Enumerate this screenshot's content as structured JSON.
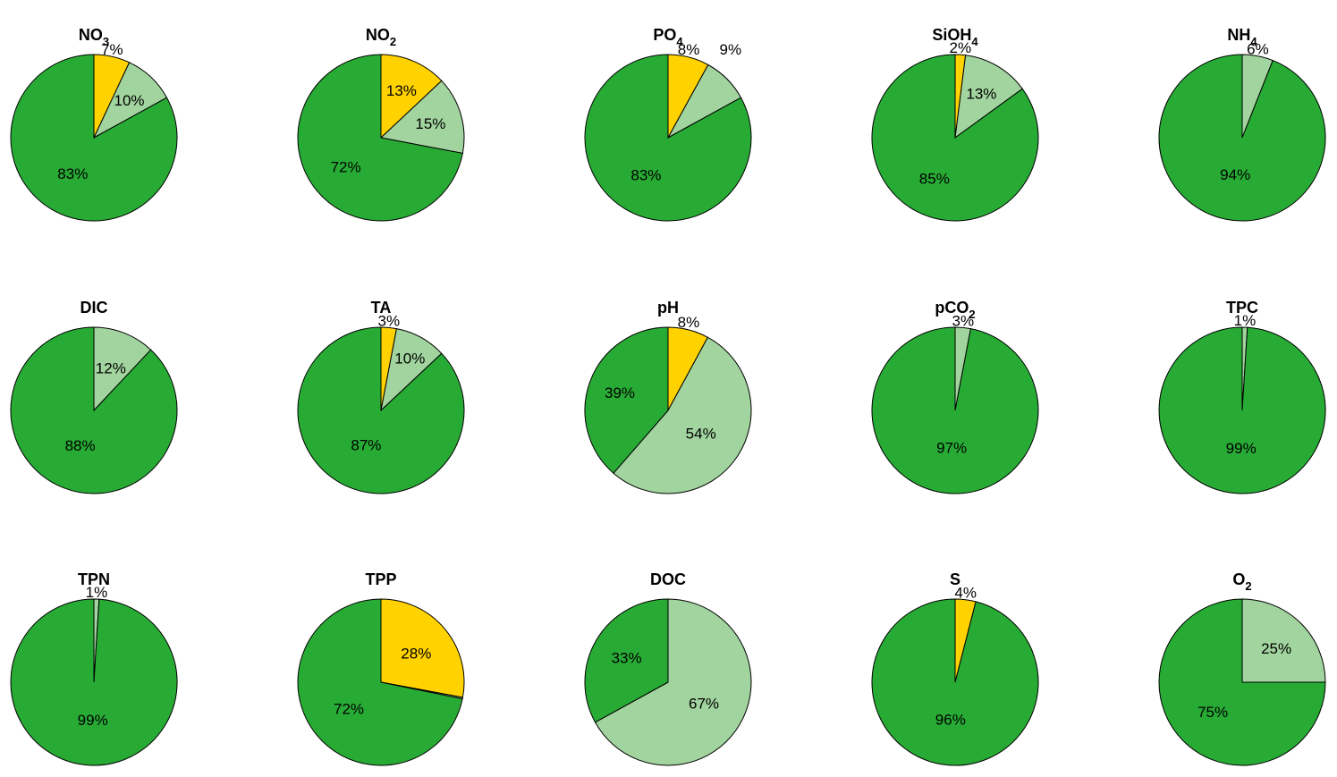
{
  "colors": {
    "yellow": "#FFD200",
    "light-green": "#A1D49E",
    "green": "#28AB35",
    "stroke": "#000000"
  },
  "chart_data": [
    {
      "type": "pie",
      "title": "NO3",
      "title_base": "NO",
      "title_sub": "3",
      "slices": [
        {
          "color": "yellow",
          "value": 7,
          "label": "7%"
        },
        {
          "color": "light-green",
          "value": 10,
          "label": "10%"
        },
        {
          "color": "green",
          "value": 83,
          "label": "83%"
        }
      ]
    },
    {
      "type": "pie",
      "title": "NO2",
      "title_base": "NO",
      "title_sub": "2",
      "slices": [
        {
          "color": "yellow",
          "value": 13,
          "label": "13%"
        },
        {
          "color": "light-green",
          "value": 15,
          "label": "15%"
        },
        {
          "color": "green",
          "value": 72,
          "label": "72%"
        }
      ]
    },
    {
      "type": "pie",
      "title": "PO4",
      "title_base": "PO",
      "title_sub": "4",
      "slices": [
        {
          "color": "yellow",
          "value": 8,
          "label": "8%"
        },
        {
          "color": "light-green",
          "value": 9,
          "label": "9%"
        },
        {
          "color": "green",
          "value": 83,
          "label": "83%"
        }
      ]
    },
    {
      "type": "pie",
      "title": "SiOH4",
      "title_base": "SiOH",
      "title_sub": "4",
      "slices": [
        {
          "color": "yellow",
          "value": 2,
          "label": "2%"
        },
        {
          "color": "light-green",
          "value": 13,
          "label": "13%"
        },
        {
          "color": "green",
          "value": 85,
          "label": "85%"
        }
      ]
    },
    {
      "type": "pie",
      "title": "NH4",
      "title_base": "NH",
      "title_sub": "4",
      "slices": [
        {
          "color": "light-green",
          "value": 6,
          "label": "6%"
        },
        {
          "color": "green",
          "value": 94,
          "label": "94%"
        }
      ]
    },
    {
      "type": "pie",
      "title": "DIC",
      "title_base": "DIC",
      "title_sub": "",
      "slices": [
        {
          "color": "light-green",
          "value": 12,
          "label": "12%"
        },
        {
          "color": "green",
          "value": 88,
          "label": "88%"
        }
      ]
    },
    {
      "type": "pie",
      "title": "TA",
      "title_base": "TA",
      "title_sub": "",
      "slices": [
        {
          "color": "yellow",
          "value": 3,
          "label": "3%"
        },
        {
          "color": "light-green",
          "value": 10,
          "label": "10%"
        },
        {
          "color": "green",
          "value": 87,
          "label": "87%"
        }
      ]
    },
    {
      "type": "pie",
      "title": "pH",
      "title_base": "pH",
      "title_sub": "",
      "slices": [
        {
          "color": "yellow",
          "value": 8,
          "label": "8%"
        },
        {
          "color": "light-green",
          "value": 54,
          "label": "54%"
        },
        {
          "color": "green",
          "value": 39,
          "label": "39%"
        }
      ]
    },
    {
      "type": "pie",
      "title": "pCO2",
      "title_base": "pCO",
      "title_sub": "2",
      "slices": [
        {
          "color": "light-green",
          "value": 3,
          "label": "3%"
        },
        {
          "color": "green",
          "value": 97,
          "label": "97%"
        }
      ]
    },
    {
      "type": "pie",
      "title": "TPC",
      "title_base": "TPC",
      "title_sub": "",
      "slices": [
        {
          "color": "light-green",
          "value": 1,
          "label": "1%"
        },
        {
          "color": "green",
          "value": 99,
          "label": "99%"
        }
      ]
    },
    {
      "type": "pie",
      "title": "TPN",
      "title_base": "TPN",
      "title_sub": "",
      "slices": [
        {
          "color": "light-green",
          "value": 1,
          "label": "1%"
        },
        {
          "color": "green",
          "value": 99,
          "label": "99%"
        }
      ]
    },
    {
      "type": "pie",
      "title": "TPP",
      "title_base": "TPP",
      "title_sub": "",
      "slices": [
        {
          "color": "yellow",
          "value": 28,
          "label": "28%"
        },
        {
          "color": "light-green",
          "value": 0.3,
          "label": ""
        },
        {
          "color": "green",
          "value": 72,
          "label": "72%"
        }
      ]
    },
    {
      "type": "pie",
      "title": "DOC",
      "title_base": "DOC",
      "title_sub": "",
      "slices": [
        {
          "color": "light-green",
          "value": 67,
          "label": "67%"
        },
        {
          "color": "green",
          "value": 33,
          "label": "33%"
        }
      ]
    },
    {
      "type": "pie",
      "title": "S",
      "title_base": "S",
      "title_sub": "",
      "slices": [
        {
          "color": "yellow",
          "value": 4,
          "label": "4%"
        },
        {
          "color": "green",
          "value": 96,
          "label": "96%"
        }
      ]
    },
    {
      "type": "pie",
      "title": "O2",
      "title_base": "O",
      "title_sub": "2",
      "slices": [
        {
          "color": "light-green",
          "value": 25,
          "label": "25%"
        },
        {
          "color": "green",
          "value": 75,
          "label": "75%"
        }
      ]
    }
  ]
}
